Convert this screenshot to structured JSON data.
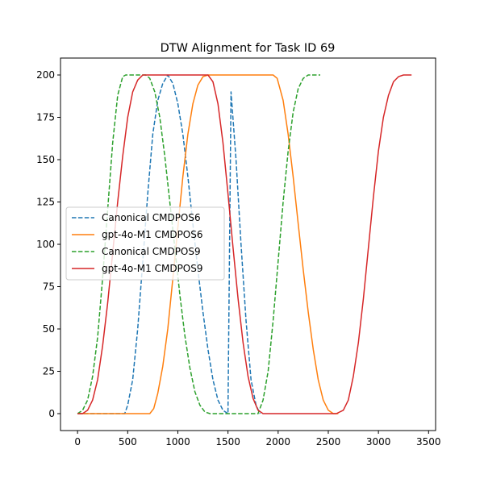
{
  "chart_data": {
    "type": "line",
    "title": "DTW Alignment for Task ID 69",
    "xlabel": "",
    "ylabel": "",
    "xlim": [
      -170,
      3570
    ],
    "ylim": [
      -10,
      210
    ],
    "xticks": [
      0,
      500,
      1000,
      1500,
      2000,
      2500,
      3000,
      3500
    ],
    "yticks": [
      0,
      25,
      50,
      75,
      100,
      125,
      150,
      175,
      200
    ],
    "grid": false,
    "legend_position": "center-left",
    "series": [
      {
        "name": "Canonical CMDPOS6",
        "color": "#1f77b4",
        "dash": "dashed",
        "points": [
          [
            0,
            0
          ],
          [
            470,
            0
          ],
          [
            500,
            5
          ],
          [
            550,
            20
          ],
          [
            600,
            50
          ],
          [
            650,
            90
          ],
          [
            700,
            130
          ],
          [
            750,
            165
          ],
          [
            800,
            185
          ],
          [
            850,
            195
          ],
          [
            900,
            200
          ],
          [
            950,
            195
          ],
          [
            1000,
            183
          ],
          [
            1050,
            165
          ],
          [
            1100,
            140
          ],
          [
            1150,
            112
          ],
          [
            1200,
            85
          ],
          [
            1250,
            60
          ],
          [
            1300,
            38
          ],
          [
            1350,
            20
          ],
          [
            1400,
            8
          ],
          [
            1450,
            2
          ],
          [
            1500,
            0
          ],
          [
            1530,
            190
          ],
          [
            1580,
            150
          ],
          [
            1630,
            100
          ],
          [
            1680,
            55
          ],
          [
            1730,
            20
          ],
          [
            1780,
            5
          ],
          [
            1820,
            0
          ]
        ]
      },
      {
        "name": "gpt-4o-M1 CMDPOS6",
        "color": "#ff7f0e",
        "dash": "solid",
        "points": [
          [
            0,
            0
          ],
          [
            720,
            0
          ],
          [
            760,
            3
          ],
          [
            800,
            12
          ],
          [
            850,
            28
          ],
          [
            900,
            50
          ],
          [
            950,
            80
          ],
          [
            1000,
            110
          ],
          [
            1050,
            140
          ],
          [
            1100,
            165
          ],
          [
            1150,
            183
          ],
          [
            1200,
            194
          ],
          [
            1250,
            199
          ],
          [
            1300,
            200
          ],
          [
            1950,
            200
          ],
          [
            1990,
            198
          ],
          [
            2050,
            185
          ],
          [
            2100,
            165
          ],
          [
            2150,
            140
          ],
          [
            2200,
            112
          ],
          [
            2250,
            85
          ],
          [
            2300,
            60
          ],
          [
            2350,
            38
          ],
          [
            2400,
            20
          ],
          [
            2450,
            8
          ],
          [
            2500,
            2
          ],
          [
            2550,
            0
          ],
          [
            2600,
            0
          ]
        ]
      },
      {
        "name": "Canonical CMDPOS9",
        "color": "#2ca02c",
        "dash": "dashed",
        "points": [
          [
            0,
            0
          ],
          [
            50,
            2
          ],
          [
            100,
            8
          ],
          [
            150,
            22
          ],
          [
            200,
            45
          ],
          [
            250,
            80
          ],
          [
            300,
            120
          ],
          [
            350,
            160
          ],
          [
            400,
            188
          ],
          [
            450,
            199
          ],
          [
            480,
            200
          ],
          [
            680,
            200
          ],
          [
            720,
            198
          ],
          [
            770,
            190
          ],
          [
            820,
            175
          ],
          [
            870,
            152
          ],
          [
            920,
            125
          ],
          [
            970,
            98
          ],
          [
            1020,
            70
          ],
          [
            1070,
            46
          ],
          [
            1120,
            27
          ],
          [
            1170,
            13
          ],
          [
            1220,
            5
          ],
          [
            1270,
            1
          ],
          [
            1320,
            0
          ],
          [
            1800,
            0
          ],
          [
            1850,
            8
          ],
          [
            1900,
            25
          ],
          [
            1950,
            55
          ],
          [
            2000,
            90
          ],
          [
            2050,
            125
          ],
          [
            2100,
            155
          ],
          [
            2150,
            178
          ],
          [
            2200,
            192
          ],
          [
            2250,
            198
          ],
          [
            2300,
            200
          ],
          [
            2420,
            200
          ]
        ]
      },
      {
        "name": "gpt-4o-M1 CMDPOS9",
        "color": "#d62728",
        "dash": "solid",
        "points": [
          [
            0,
            0
          ],
          [
            50,
            0
          ],
          [
            100,
            2
          ],
          [
            150,
            8
          ],
          [
            200,
            20
          ],
          [
            250,
            40
          ],
          [
            300,
            65
          ],
          [
            350,
            95
          ],
          [
            400,
            125
          ],
          [
            450,
            152
          ],
          [
            500,
            175
          ],
          [
            550,
            190
          ],
          [
            600,
            197
          ],
          [
            650,
            200
          ],
          [
            1300,
            200
          ],
          [
            1350,
            196
          ],
          [
            1400,
            183
          ],
          [
            1450,
            160
          ],
          [
            1500,
            130
          ],
          [
            1550,
            98
          ],
          [
            1600,
            68
          ],
          [
            1650,
            42
          ],
          [
            1700,
            22
          ],
          [
            1750,
            9
          ],
          [
            1800,
            2
          ],
          [
            1850,
            0
          ],
          [
            2580,
            0
          ],
          [
            2650,
            2
          ],
          [
            2700,
            8
          ],
          [
            2750,
            22
          ],
          [
            2800,
            42
          ],
          [
            2850,
            68
          ],
          [
            2900,
            98
          ],
          [
            2950,
            128
          ],
          [
            3000,
            155
          ],
          [
            3050,
            175
          ],
          [
            3100,
            188
          ],
          [
            3150,
            196
          ],
          [
            3200,
            199
          ],
          [
            3250,
            200
          ],
          [
            3330,
            200
          ]
        ]
      }
    ]
  }
}
